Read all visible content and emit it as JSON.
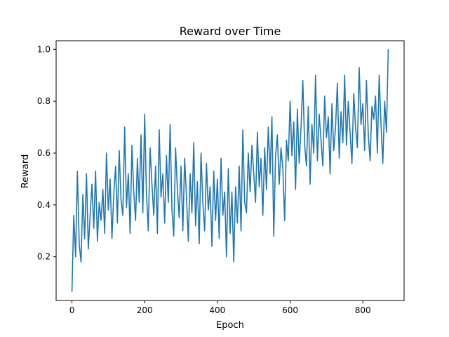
{
  "chart_data": {
    "type": "line",
    "title": "Reward over Time",
    "xlabel": "Epoch",
    "ylabel": "Reward",
    "xlim": [
      -43.5,
      913.5
    ],
    "ylim": [
      0.0314,
      1.0332
    ],
    "xticks": [
      0,
      200,
      400,
      600,
      800
    ],
    "yticks": [
      0.2,
      0.4,
      0.6,
      0.8,
      1.0
    ],
    "xtick_labels": [
      "0",
      "200",
      "400",
      "600",
      "800"
    ],
    "ytick_labels": [
      "0.2",
      "0.4",
      "0.6",
      "0.8",
      "1.0"
    ],
    "grid": false,
    "legend": "none",
    "color": "#1f77b4",
    "series": [
      {
        "x": [
          0,
          5,
          10,
          15,
          20,
          25,
          30,
          35,
          40,
          45,
          50,
          55,
          60,
          65,
          70,
          75,
          80,
          85,
          90,
          95,
          100,
          105,
          110,
          115,
          120,
          125,
          130,
          135,
          140,
          145,
          150,
          155,
          160,
          165,
          170,
          175,
          180,
          185,
          190,
          195,
          200,
          205,
          210,
          215,
          220,
          225,
          230,
          235,
          240,
          245,
          250,
          255,
          260,
          265,
          270,
          275,
          280,
          285,
          290,
          295,
          300,
          305,
          310,
          315,
          320,
          325,
          330,
          335,
          340,
          345,
          350,
          355,
          360,
          365,
          370,
          375,
          380,
          385,
          390,
          395,
          400,
          405,
          410,
          415,
          420,
          425,
          430,
          435,
          440,
          445,
          450,
          455,
          460,
          465,
          470,
          475,
          480,
          485,
          490,
          495,
          500,
          505,
          510,
          515,
          520,
          525,
          530,
          535,
          540,
          545,
          550,
          555,
          560,
          565,
          570,
          575,
          580,
          585,
          590,
          595,
          600,
          605,
          610,
          615,
          620,
          625,
          630,
          635,
          640,
          645,
          650,
          655,
          660,
          665,
          670,
          675,
          680,
          685,
          690,
          695,
          700,
          705,
          710,
          715,
          720,
          725,
          730,
          735,
          740,
          745,
          750,
          755,
          760,
          765,
          770,
          775,
          780,
          785,
          790,
          795,
          800,
          805,
          810,
          815,
          820,
          825,
          830,
          835,
          840,
          845,
          850,
          855,
          860,
          865,
          870
        ],
        "y": [
          0.065,
          0.36,
          0.2,
          0.53,
          0.25,
          0.18,
          0.44,
          0.27,
          0.52,
          0.23,
          0.36,
          0.48,
          0.31,
          0.53,
          0.26,
          0.41,
          0.34,
          0.46,
          0.29,
          0.6,
          0.38,
          0.5,
          0.27,
          0.44,
          0.55,
          0.33,
          0.61,
          0.42,
          0.36,
          0.7,
          0.39,
          0.52,
          0.29,
          0.63,
          0.45,
          0.34,
          0.58,
          0.41,
          0.67,
          0.37,
          0.75,
          0.44,
          0.3,
          0.62,
          0.48,
          0.36,
          0.55,
          0.29,
          0.69,
          0.43,
          0.52,
          0.33,
          0.59,
          0.41,
          0.71,
          0.38,
          0.28,
          0.62,
          0.46,
          0.35,
          0.55,
          0.3,
          0.58,
          0.43,
          0.26,
          0.52,
          0.37,
          0.64,
          0.32,
          0.49,
          0.25,
          0.6,
          0.41,
          0.3,
          0.56,
          0.38,
          0.47,
          0.24,
          0.53,
          0.34,
          0.5,
          0.27,
          0.58,
          0.36,
          0.45,
          0.2,
          0.54,
          0.29,
          0.45,
          0.18,
          0.47,
          0.33,
          0.55,
          0.3,
          0.69,
          0.41,
          0.37,
          0.6,
          0.45,
          0.63,
          0.52,
          0.41,
          0.68,
          0.47,
          0.58,
          0.36,
          0.62,
          0.46,
          0.7,
          0.52,
          0.74,
          0.28,
          0.59,
          0.67,
          0.48,
          0.62,
          0.54,
          0.34,
          0.65,
          0.57,
          0.8,
          0.59,
          0.72,
          0.46,
          0.77,
          0.56,
          0.7,
          0.88,
          0.63,
          0.55,
          0.78,
          0.48,
          0.71,
          0.6,
          0.9,
          0.57,
          0.75,
          0.65,
          0.55,
          0.82,
          0.66,
          0.74,
          0.52,
          0.79,
          0.61,
          0.7,
          0.87,
          0.58,
          0.76,
          0.64,
          0.9,
          0.63,
          0.8,
          0.68,
          0.56,
          0.83,
          0.7,
          0.62,
          0.93,
          0.71,
          0.79,
          0.61,
          0.88,
          0.67,
          0.57,
          0.78,
          0.73,
          0.82,
          0.6,
          0.9,
          0.71,
          0.56,
          0.8,
          0.68,
          1.0
        ]
      }
    ]
  }
}
